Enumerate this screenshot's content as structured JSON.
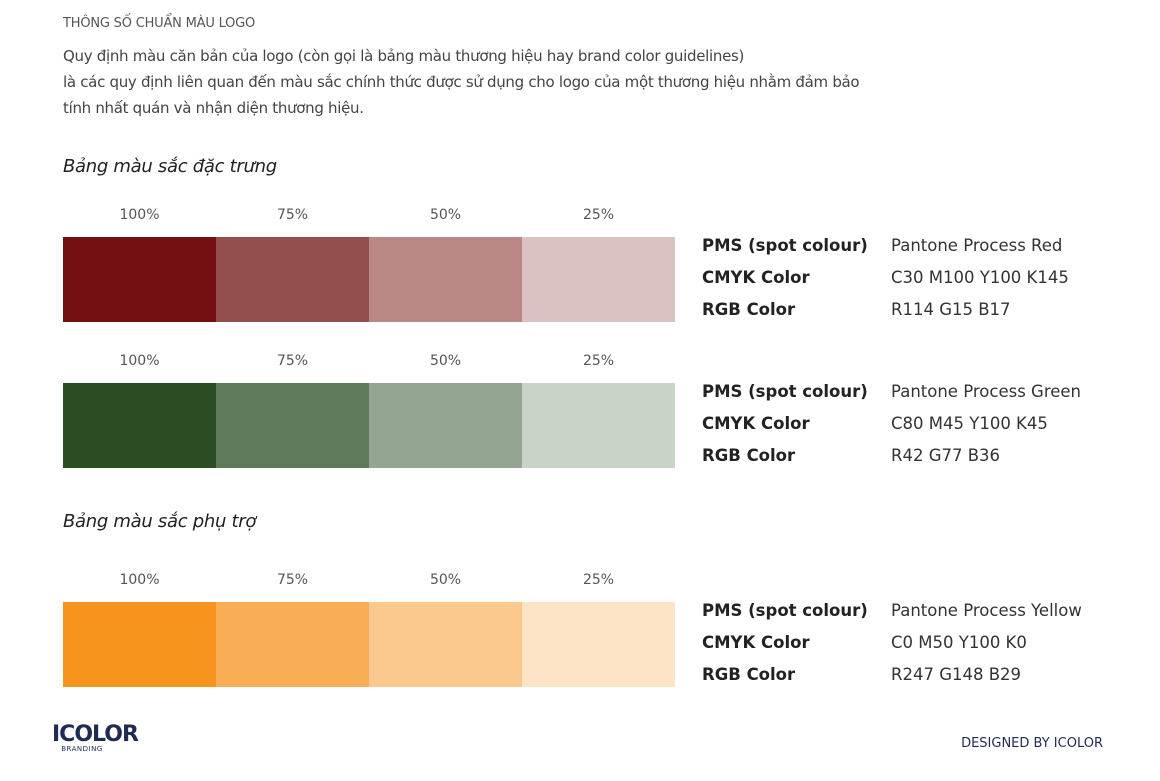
{
  "header": {
    "title": "THÔNG SỐ CHUẨN MÀU LOGO",
    "intro": [
      "Quy định màu căn bản của logo (còn gọi là bảng màu thương hiệu hay brand color guidelines)",
      "là các quy định liên quan đến màu sắc chính thức được sử dụng cho logo của một thương hiệu nhằm đảm bảo",
      "tính nhất quán và nhận diện thương hiệu."
    ]
  },
  "sections": {
    "primary": "Bảng màu sắc đặc trưng",
    "secondary": "Bảng màu sắc phụ trợ"
  },
  "percent_labels": [
    "100%",
    "75%",
    "50%",
    "25%"
  ],
  "labels": {
    "pms": "PMS (spot colour)",
    "cmyk": "CMYK Color",
    "rgb": "RGB Color"
  },
  "colors": [
    {
      "pms": "Pantone Process Red",
      "cmyk": "C30 M100 Y100 K145",
      "rgb": "R114 G15 B17",
      "swatches": [
        "#720f11",
        "#954e4e",
        "#b98786",
        "#dbc1c1"
      ]
    },
    {
      "pms": "Pantone Process Green",
      "cmyk": "C80 M45 Y100 K45",
      "rgb": "R42 G77 B36",
      "swatches": [
        "#2a4d24",
        "#5f7a5b",
        "#94a691",
        "#c9d3c8"
      ]
    },
    {
      "pms": "Pantone Process Yellow",
      "cmyk": "C0 M50 Y100 K0",
      "rgb": "R247 G148 B29",
      "swatches": [
        "#f7941d",
        "#f9ae56",
        "#fbc98e",
        "#fde4c6"
      ]
    }
  ],
  "footer": {
    "logo_text": "ICOLOR",
    "logo_sub": "BRANDING",
    "designed": "DESIGNED BY ICOLOR"
  }
}
